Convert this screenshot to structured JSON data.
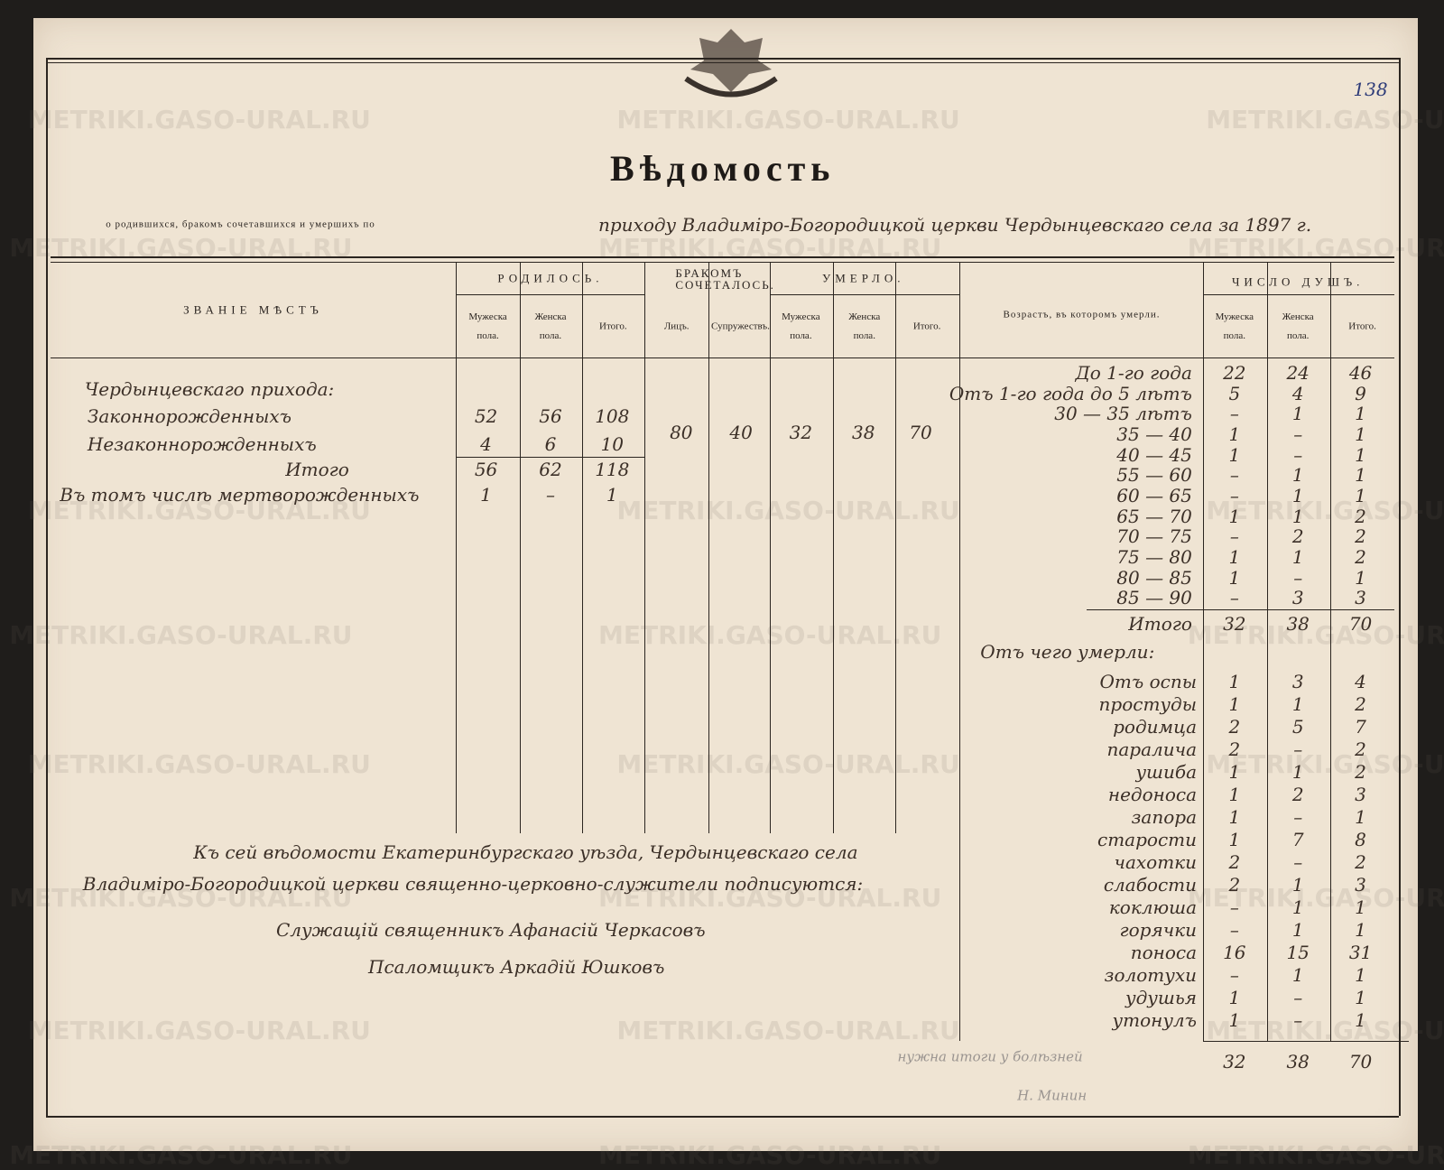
{
  "watermark": "METRIKI.GASO-URAL.RU",
  "page_number": "138",
  "header": {
    "title": "Вѣдомость",
    "subtitle_printed": "о родившихся, бракомъ сочетавшихся и умершихъ по",
    "subtitle_handwritten": "приходу Владиміро-Богородицкой церкви Чердынцевскаго села за 1897 г."
  },
  "table": {
    "columns": {
      "place": "Званіе мѣстъ",
      "born": "Родилось.",
      "married": "Бракомъ сочеталось.",
      "died": "Умерло.",
      "age": "Возрастъ, въ которомъ умерли.",
      "souls": "Число душъ."
    },
    "subcolumns": {
      "born": [
        "Мужеска пола.",
        "Женска пола.",
        "Итого."
      ],
      "married": [
        "Лицъ.",
        "Супружествъ."
      ],
      "died": [
        "Мужеска пола.",
        "Женска пола.",
        "Итого."
      ],
      "souls": [
        "Мужеска пола.",
        "Женска пола.",
        "Итого."
      ]
    },
    "parish": "Чердынцевскаго прихода:",
    "birth_rows": [
      [
        "Законнорожденныхъ",
        52,
        56,
        108
      ],
      [
        "Незаконнорожденныхъ",
        4,
        6,
        10
      ],
      [
        "Итого",
        56,
        62,
        118
      ],
      [
        "Въ томъ числѣ мертворожденныхъ",
        1,
        "–",
        1
      ]
    ],
    "marriages": [
      80,
      40
    ],
    "deaths": [
      32,
      38,
      70
    ],
    "age_rows": [
      [
        "До 1-го года",
        22,
        24,
        46
      ],
      [
        "Отъ 1-го года до 5 лѣтъ",
        5,
        4,
        9
      ],
      [
        "30 — 35 лѣтъ",
        "–",
        1,
        1
      ],
      [
        "35 — 40",
        1,
        "–",
        1
      ],
      [
        "40 — 45",
        1,
        "–",
        1
      ],
      [
        "55 — 60",
        "–",
        1,
        1
      ],
      [
        "60 — 65",
        "–",
        1,
        1
      ],
      [
        "65 — 70",
        1,
        1,
        2
      ],
      [
        "70 — 75",
        "–",
        2,
        2
      ],
      [
        "75 — 80",
        1,
        1,
        2
      ],
      [
        "80 — 85",
        1,
        "–",
        1
      ],
      [
        "85 — 90",
        "–",
        3,
        3
      ],
      [
        "Итого",
        32,
        38,
        70
      ]
    ],
    "causes_heading": "Отъ чего умерли:",
    "cause_rows": [
      [
        "Отъ оспы",
        1,
        3,
        4
      ],
      [
        "простуды",
        1,
        1,
        2
      ],
      [
        "родимца",
        2,
        5,
        7
      ],
      [
        "паралича",
        2,
        "–",
        2
      ],
      [
        "ушиба",
        1,
        1,
        2
      ],
      [
        "недоноса",
        1,
        2,
        3
      ],
      [
        "запора",
        1,
        "–",
        1
      ],
      [
        "старости",
        1,
        7,
        8
      ],
      [
        "чахотки",
        2,
        "–",
        2
      ],
      [
        "слабости",
        2,
        1,
        3
      ],
      [
        "коклюша",
        "–",
        1,
        1
      ],
      [
        "горячки",
        "–",
        1,
        1
      ],
      [
        "поноса",
        16,
        15,
        31
      ],
      [
        "золотухи",
        "–",
        1,
        1
      ],
      [
        "удушья",
        1,
        "–",
        1
      ],
      [
        "утонулъ",
        1,
        "–",
        1
      ]
    ],
    "cause_totals": [
      32,
      38,
      70
    ]
  },
  "signatures": {
    "lines": [
      "Къ сей вѣдомости Екатеринбургскаго уѣзда, Чердынцевскаго села",
      "Владиміро-Богородицкой церкви священно-церковно-служители подписуются:",
      "Служащій священникъ Афанасій Черкасовъ",
      "Псаломщикъ Аркадій Юшковъ"
    ]
  },
  "notes": [
    "нужна итоги у болѣзней",
    "Н. Минин"
  ]
}
